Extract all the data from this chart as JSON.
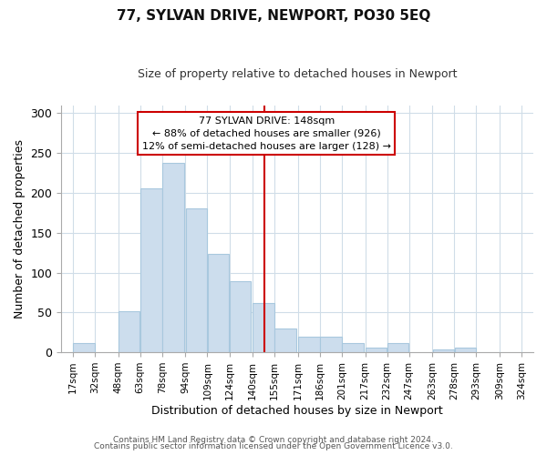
{
  "title": "77, SYLVAN DRIVE, NEWPORT, PO30 5EQ",
  "subtitle": "Size of property relative to detached houses in Newport",
  "xlabel": "Distribution of detached houses by size in Newport",
  "ylabel": "Number of detached properties",
  "bar_color": "#ccdded",
  "bar_edge_color": "#a8c8de",
  "vline_x": 148,
  "vline_color": "#cc0000",
  "annotation_title": "77 SYLVAN DRIVE: 148sqm",
  "annotation_line1": "← 88% of detached houses are smaller (926)",
  "annotation_line2": "12% of semi-detached houses are larger (128) →",
  "annotation_box_facecolor": "#ffffff",
  "annotation_box_edgecolor": "#cc0000",
  "bins_left": [
    17,
    32,
    48,
    63,
    78,
    94,
    109,
    124,
    140,
    155,
    171,
    186,
    201,
    217,
    232,
    247,
    263,
    278,
    293,
    309
  ],
  "bin_width": 15,
  "bin_heights": [
    11,
    0,
    52,
    206,
    238,
    181,
    123,
    89,
    62,
    30,
    19,
    20,
    11,
    6,
    11,
    0,
    4,
    6,
    0,
    0
  ],
  "tick_labels": [
    "17sqm",
    "32sqm",
    "48sqm",
    "63sqm",
    "78sqm",
    "94sqm",
    "109sqm",
    "124sqm",
    "140sqm",
    "155sqm",
    "171sqm",
    "186sqm",
    "201sqm",
    "217sqm",
    "232sqm",
    "247sqm",
    "263sqm",
    "278sqm",
    "293sqm",
    "309sqm",
    "324sqm"
  ],
  "ylim": [
    0,
    310
  ],
  "yticks": [
    0,
    50,
    100,
    150,
    200,
    250,
    300
  ],
  "xlim_left": 9,
  "xlim_right": 332,
  "footer1": "Contains HM Land Registry data © Crown copyright and database right 2024.",
  "footer2": "Contains public sector information licensed under the Open Government Licence v3.0.",
  "grid_color": "#d0dde8",
  "title_fontsize": 11,
  "subtitle_fontsize": 9,
  "axis_label_fontsize": 9,
  "tick_fontsize": 7.5,
  "footer_fontsize": 6.5
}
